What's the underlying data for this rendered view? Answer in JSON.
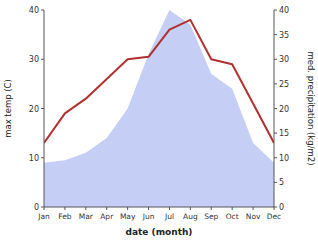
{
  "chart_data": {
    "type": "line",
    "xlabel": "date (month)",
    "ylabel": "max temp (C)",
    "y2label": "med. precipitation (kg/m2)",
    "categories": [
      "Jan",
      "Feb",
      "Mar",
      "Apr",
      "May",
      "Jun",
      "Jul",
      "Aug",
      "Sep",
      "Oct",
      "Nov",
      "Dec"
    ],
    "series": [
      {
        "type": "area",
        "axis": "y2",
        "color": "#c5cef5",
        "values": [
          9,
          9.5,
          11,
          14,
          20,
          31,
          40,
          37,
          27,
          24,
          13,
          9
        ]
      },
      {
        "type": "line",
        "color": "#b03030",
        "values": [
          13,
          19,
          22,
          26,
          30,
          30.5,
          36,
          38,
          30,
          29,
          21,
          13
        ]
      }
    ],
    "ylim": [
      0,
      40
    ],
    "yticks": [
      0,
      10,
      20,
      30,
      40
    ],
    "y2lim": [
      0,
      40
    ],
    "y2ticks": [
      0,
      5,
      10,
      15,
      20,
      25,
      30,
      35,
      40
    ],
    "grid": false
  }
}
